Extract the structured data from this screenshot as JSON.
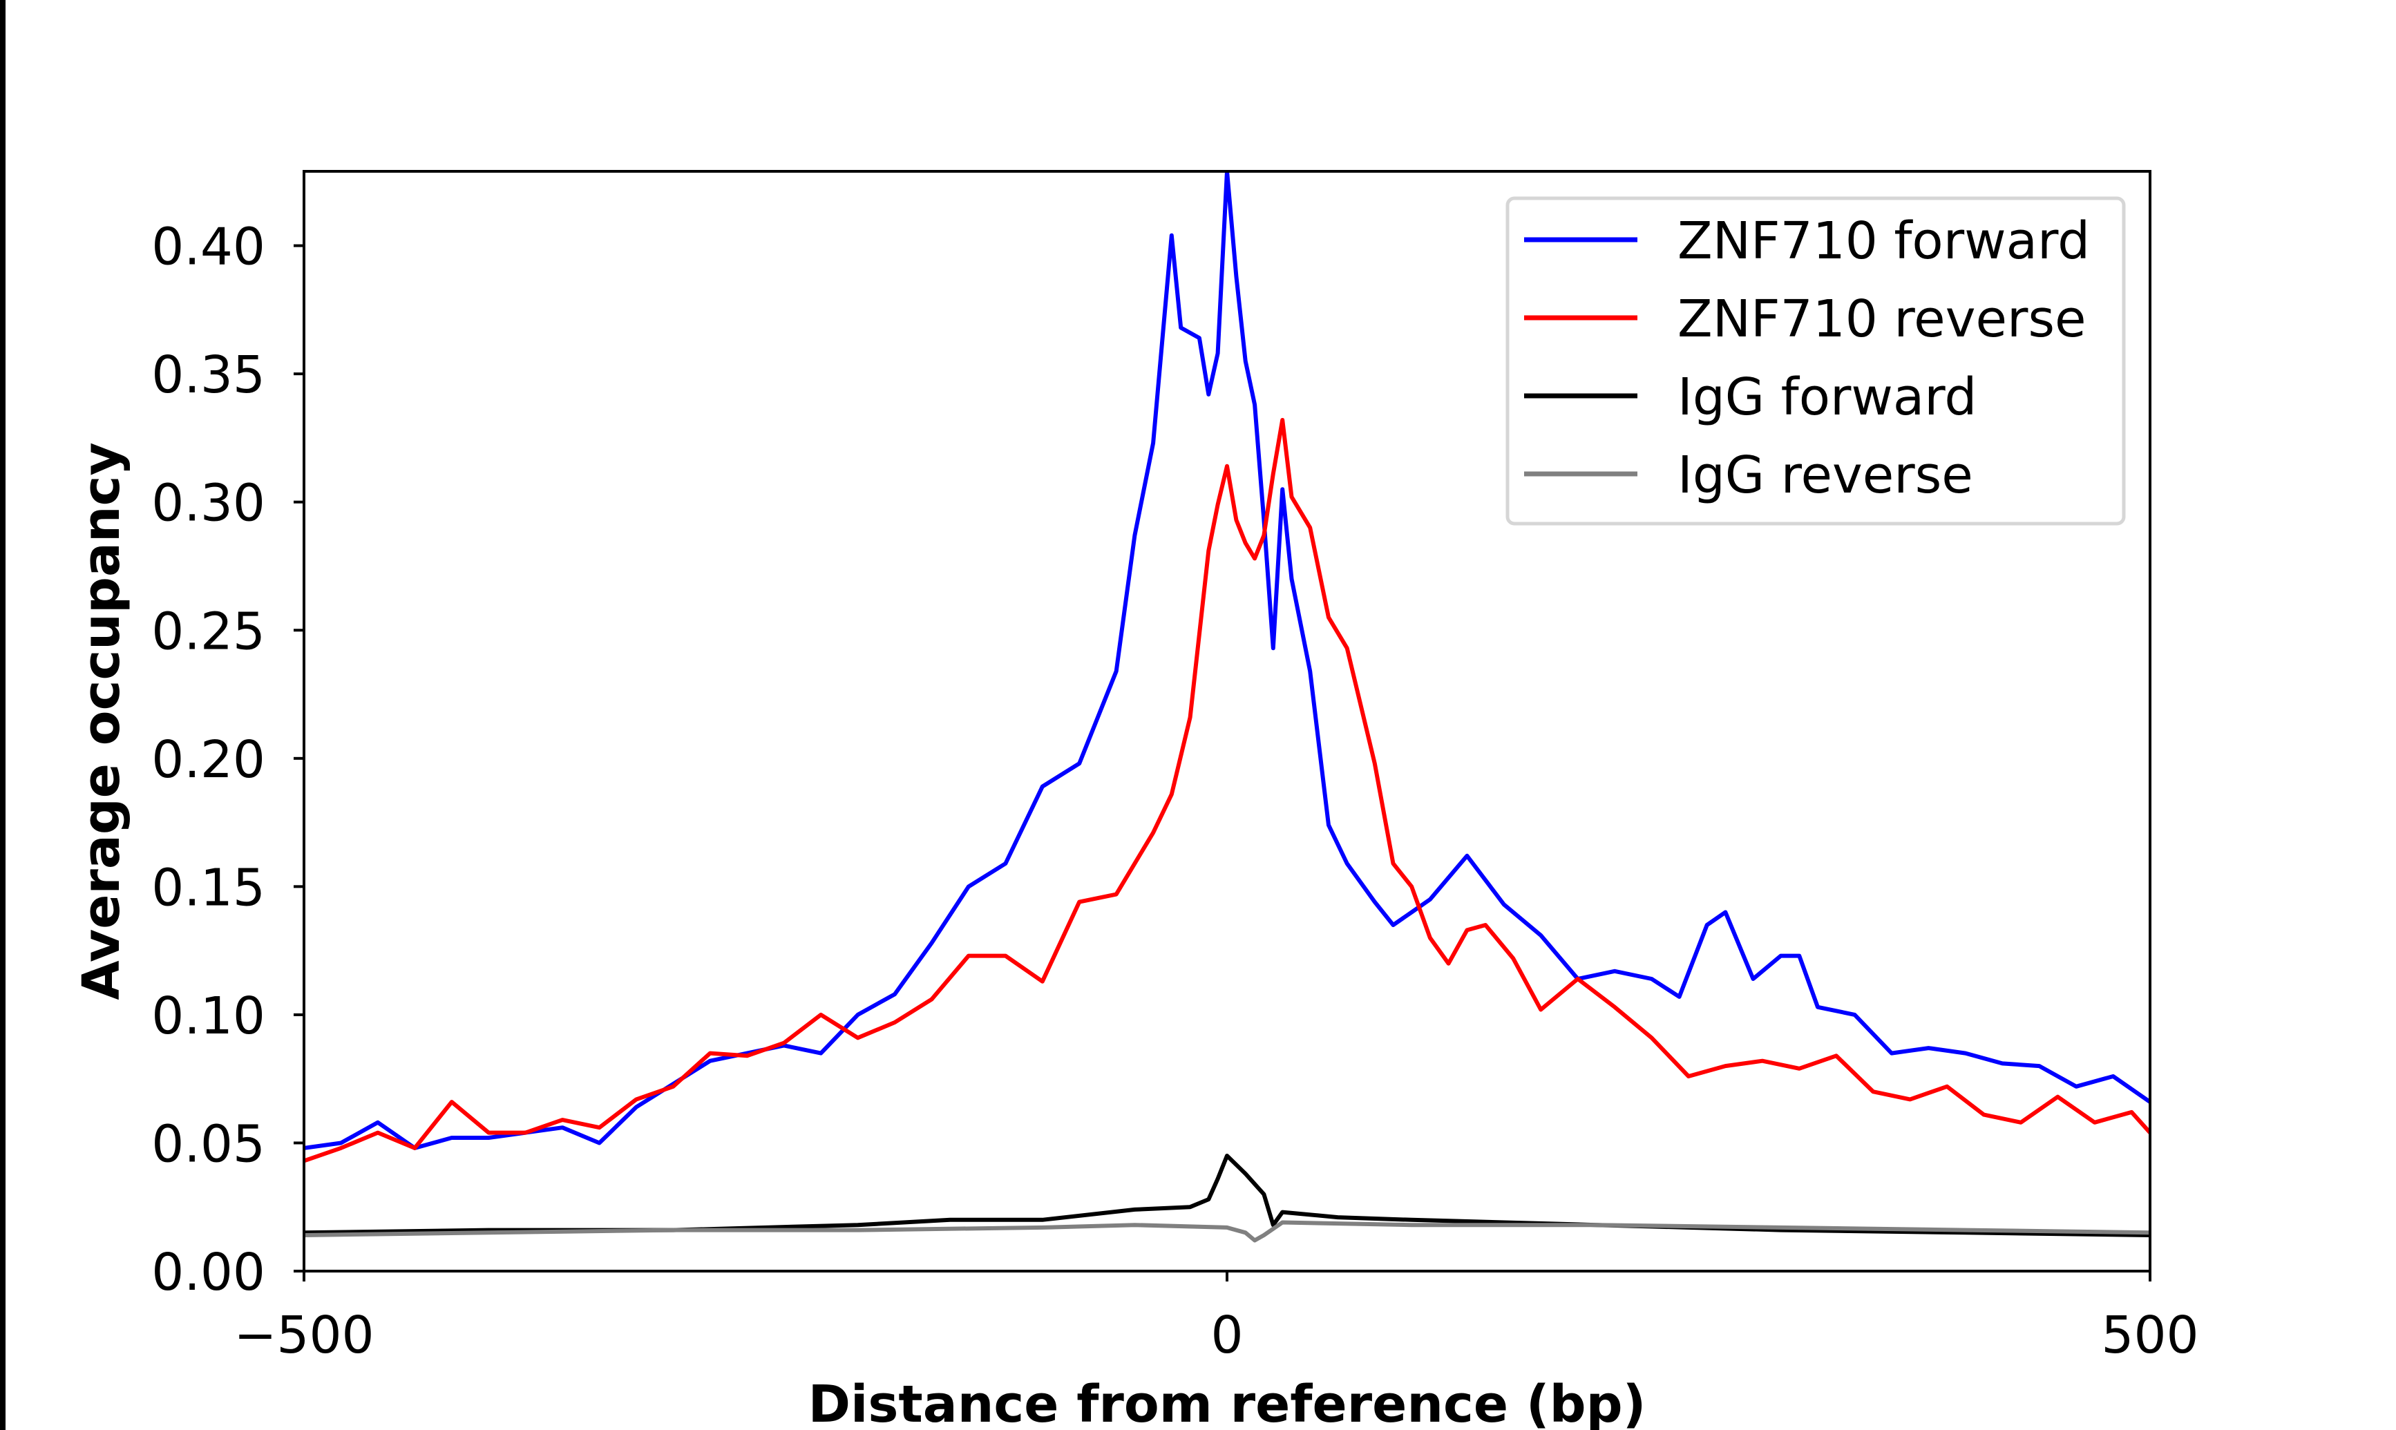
{
  "chart_data": {
    "type": "line",
    "title": "",
    "xlabel": "Distance from reference (bp)",
    "ylabel": "Average occupancy",
    "xlim": [
      -500,
      500
    ],
    "ylim": [
      0,
      0.429
    ],
    "xticks": [
      -500,
      0,
      500
    ],
    "xtick_labels": [
      "−500",
      "0",
      "500"
    ],
    "yticks": [
      0,
      0.05,
      0.1,
      0.15,
      0.2,
      0.25,
      0.3,
      0.35,
      0.4
    ],
    "ytick_labels": [
      "0.00",
      "0.05",
      "0.10",
      "0.15",
      "0.20",
      "0.25",
      "0.30",
      "0.35",
      "0.40"
    ],
    "grid": false,
    "legend_position": "top-right",
    "series": [
      {
        "name": "ZNF710 forward",
        "color": "#0000ff",
        "x": [
          -500,
          -480,
          -460,
          -440,
          -420,
          -400,
          -380,
          -360,
          -340,
          -320,
          -300,
          -280,
          -260,
          -240,
          -220,
          -200,
          -180,
          -160,
          -140,
          -120,
          -100,
          -80,
          -60,
          -50,
          -40,
          -30,
          -25,
          -15,
          -10,
          -5,
          0,
          5,
          10,
          15,
          20,
          25,
          30,
          35,
          45,
          55,
          65,
          80,
          90,
          100,
          110,
          130,
          150,
          170,
          190,
          210,
          230,
          245,
          260,
          270,
          285,
          300,
          310,
          320,
          340,
          360,
          380,
          400,
          420,
          440,
          460,
          480,
          500
        ],
        "y": [
          0.048,
          0.05,
          0.058,
          0.048,
          0.052,
          0.052,
          0.054,
          0.056,
          0.05,
          0.064,
          0.073,
          0.082,
          0.085,
          0.088,
          0.085,
          0.1,
          0.108,
          0.128,
          0.15,
          0.159,
          0.189,
          0.198,
          0.234,
          0.287,
          0.323,
          0.404,
          0.368,
          0.364,
          0.342,
          0.358,
          0.429,
          0.388,
          0.355,
          0.338,
          0.293,
          0.243,
          0.305,
          0.27,
          0.234,
          0.174,
          0.159,
          0.144,
          0.135,
          0.14,
          0.145,
          0.162,
          0.143,
          0.131,
          0.114,
          0.117,
          0.114,
          0.107,
          0.135,
          0.14,
          0.114,
          0.123,
          0.123,
          0.103,
          0.1,
          0.085,
          0.087,
          0.085,
          0.081,
          0.08,
          0.072,
          0.076,
          0.066
        ]
      },
      {
        "name": "ZNF710 reverse",
        "color": "#ff0000",
        "x": [
          -500,
          -480,
          -460,
          -440,
          -420,
          -400,
          -380,
          -360,
          -340,
          -320,
          -300,
          -280,
          -260,
          -240,
          -220,
          -200,
          -180,
          -160,
          -140,
          -120,
          -100,
          -80,
          -60,
          -40,
          -30,
          -20,
          -10,
          -5,
          0,
          5,
          10,
          15,
          20,
          25,
          30,
          35,
          45,
          55,
          65,
          80,
          90,
          100,
          110,
          120,
          130,
          140,
          155,
          170,
          190,
          210,
          230,
          250,
          270,
          290,
          310,
          330,
          350,
          370,
          390,
          410,
          430,
          450,
          470,
          490,
          500
        ],
        "y": [
          0.043,
          0.048,
          0.054,
          0.048,
          0.066,
          0.054,
          0.054,
          0.059,
          0.056,
          0.067,
          0.072,
          0.085,
          0.084,
          0.089,
          0.1,
          0.091,
          0.097,
          0.106,
          0.123,
          0.123,
          0.113,
          0.144,
          0.147,
          0.171,
          0.186,
          0.216,
          0.281,
          0.299,
          0.314,
          0.293,
          0.284,
          0.278,
          0.287,
          0.311,
          0.332,
          0.302,
          0.29,
          0.255,
          0.243,
          0.198,
          0.159,
          0.15,
          0.13,
          0.12,
          0.133,
          0.135,
          0.122,
          0.102,
          0.114,
          0.103,
          0.091,
          0.076,
          0.08,
          0.082,
          0.079,
          0.084,
          0.07,
          0.067,
          0.072,
          0.061,
          0.058,
          0.068,
          0.058,
          0.062,
          0.054
        ]
      },
      {
        "name": "IgG forward",
        "color": "#000000",
        "x": [
          -500,
          -400,
          -300,
          -200,
          -150,
          -100,
          -50,
          -20,
          -10,
          -5,
          0,
          10,
          20,
          25,
          30,
          60,
          100,
          200,
          300,
          400,
          500
        ],
        "y": [
          0.015,
          0.016,
          0.016,
          0.018,
          0.02,
          0.02,
          0.024,
          0.025,
          0.028,
          0.036,
          0.045,
          0.038,
          0.03,
          0.018,
          0.023,
          0.021,
          0.02,
          0.018,
          0.016,
          0.015,
          0.014
        ]
      },
      {
        "name": "IgG reverse",
        "color": "#808080",
        "x": [
          -500,
          -400,
          -300,
          -200,
          -100,
          -50,
          0,
          10,
          15,
          20,
          30,
          100,
          200,
          300,
          400,
          500
        ],
        "y": [
          0.014,
          0.015,
          0.016,
          0.016,
          0.017,
          0.018,
          0.017,
          0.015,
          0.012,
          0.014,
          0.019,
          0.018,
          0.018,
          0.017,
          0.016,
          0.015
        ]
      }
    ]
  }
}
